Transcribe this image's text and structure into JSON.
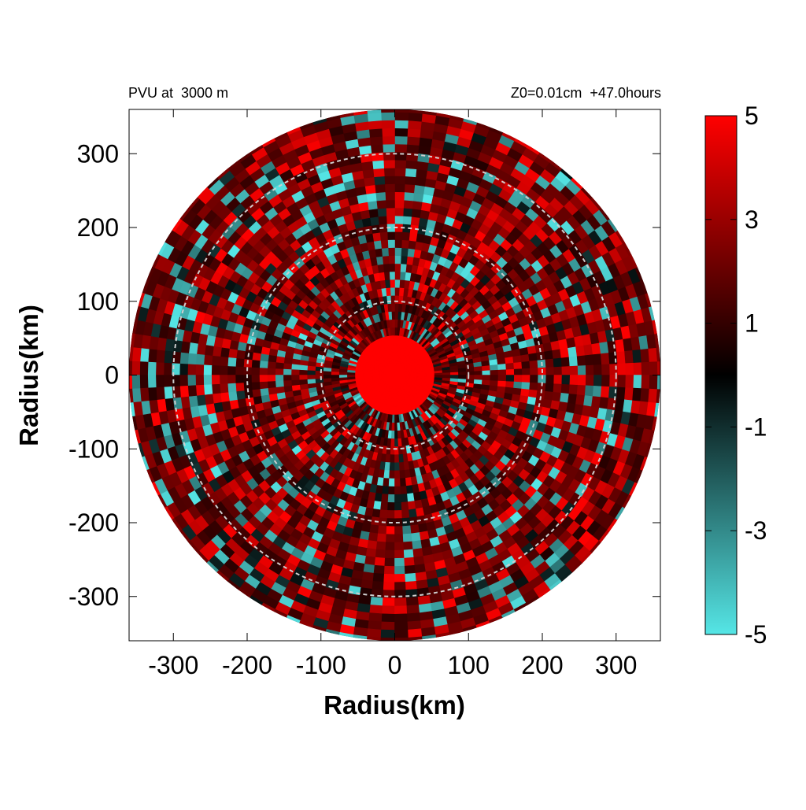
{
  "figure": {
    "title_left": "PVU at  3000 m",
    "title_right": "Z0=0.01cm  +47.0hours"
  },
  "chart_data": {
    "type": "heatmap",
    "title_left": "PVU at  3000 m",
    "title_right": "Z0=0.01cm  +47.0hours",
    "xlabel": "Radius(km)",
    "ylabel": "Radius(km)",
    "xlim": [
      -360,
      360
    ],
    "ylim": [
      -360,
      360
    ],
    "xticks": [
      -300,
      -200,
      -100,
      0,
      100,
      200,
      300
    ],
    "yticks": [
      300,
      200,
      100,
      0,
      -100,
      -200,
      -300
    ],
    "field_domain_radius_km": 360,
    "reference_circles_km": [
      100,
      200,
      300
    ],
    "colorbar": {
      "min": -5,
      "max": 5,
      "ticks": [
        5,
        3,
        1,
        -1,
        -3,
        -5
      ],
      "colors": {
        "negative_end": "#55e6e6",
        "center": "#000000",
        "positive_end": "#ff0000"
      }
    },
    "field_description_values": {
      "core_radius_km": 55,
      "core_value": 5,
      "background_value": 1.5
    }
  }
}
